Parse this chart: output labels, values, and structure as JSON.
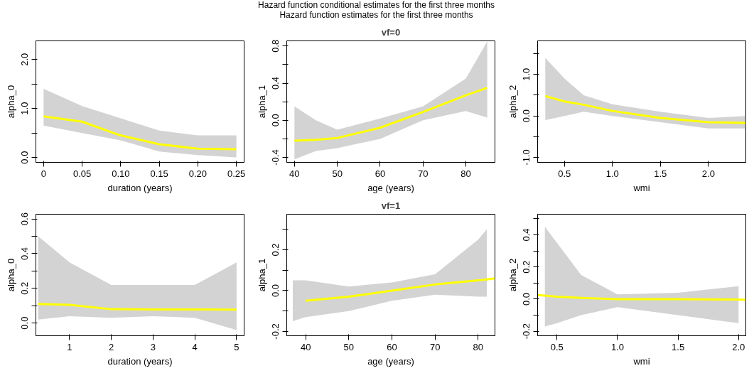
{
  "chart_data": [
    {
      "type": "line",
      "xlabel": "duration (years)",
      "ylabel": "alpha_0",
      "annotations": [
        "Hazard function conditional estimates for the first three months",
        "Hazard function estimates for the first three months"
      ],
      "xlim": [
        -0.01,
        0.26
      ],
      "ylim": [
        -0.1,
        2.38
      ],
      "xticks": [
        0,
        {
          "value": 0.05,
          "label": "0.05"
        },
        {
          "value": 0.1,
          "label": "0.10"
        },
        {
          "value": 0.15,
          "label": "0.15"
        },
        {
          "value": 0.2,
          "label": "0.20"
        },
        0.25
      ],
      "yticks": [
        {
          "value": 0,
          "label": "0.0"
        },
        {
          "value": 0.5,
          "label": null
        },
        {
          "value": 1,
          "label": "1.0"
        },
        {
          "value": 1.5,
          "label": null
        },
        {
          "value": 2,
          "label": "2.0"
        }
      ],
      "series": [
        {
          "color": "#ffff00",
          "x": [
            0,
            0.05,
            0.1,
            0.15,
            0.2,
            0.25
          ],
          "values": [
            0.84,
            0.73,
            0.45,
            0.27,
            0.18,
            0.17
          ],
          "lower": [
            0.65,
            0.5,
            0.35,
            0.12,
            0.05,
            0.0
          ],
          "upper": [
            1.4,
            1.05,
            0.8,
            0.55,
            0.45,
            0.45
          ]
        }
      ]
    },
    {
      "type": "line",
      "title": "vf=0",
      "xlabel": "age (years)",
      "ylabel": "alpha_1",
      "xlim": [
        38.2,
        86.8
      ],
      "ylim": [
        -0.453,
        0.856
      ],
      "xticks": [
        40,
        50,
        60,
        70,
        80
      ],
      "yticks": [
        -0.4,
        {
          "value": -0.2,
          "label": null
        },
        {
          "value": 0,
          "label": "0.0"
        },
        {
          "value": 0.2,
          "label": null
        },
        0.4,
        {
          "value": 0.6,
          "label": null
        },
        0.8
      ],
      "series": [
        {
          "color": "#ffff00",
          "x": [
            40,
            45,
            50,
            60,
            70,
            80,
            85
          ],
          "values": [
            -0.22,
            -0.21,
            -0.19,
            -0.08,
            0.09,
            0.27,
            0.35
          ],
          "lower": [
            -0.42,
            -0.33,
            -0.3,
            -0.2,
            0.0,
            0.1,
            0.03
          ],
          "upper": [
            0.15,
            0.0,
            -0.1,
            0.02,
            0.15,
            0.45,
            0.85
          ]
        }
      ]
    },
    {
      "type": "line",
      "xlabel": "wmi",
      "ylabel": "alpha_2",
      "xlim": [
        0.22,
        2.39
      ],
      "ylim": [
        -1.12,
        1.81
      ],
      "xticks": [
        0.5,
        {
          "value": 1,
          "label": "1.0"
        },
        1.5,
        {
          "value": 2,
          "label": "2.0"
        }
      ],
      "yticks": [
        {
          "value": -1,
          "label": "-1.0"
        },
        {
          "value": -0.5,
          "label": null
        },
        {
          "value": 0,
          "label": "0.0"
        },
        {
          "value": 0.5,
          "label": null
        },
        {
          "value": 1,
          "label": "1.0"
        },
        {
          "value": 1.5,
          "label": null
        }
      ],
      "series": [
        {
          "color": "#ffff00",
          "x": [
            0.3,
            0.5,
            0.7,
            1.0,
            1.5,
            2.0,
            2.39
          ],
          "values": [
            0.48,
            0.35,
            0.27,
            0.12,
            -0.05,
            -0.15,
            -0.17
          ],
          "lower": [
            -0.1,
            0.0,
            0.1,
            0.0,
            -0.15,
            -0.3,
            -0.3
          ],
          "upper": [
            1.4,
            0.9,
            0.5,
            0.28,
            0.1,
            -0.05,
            0.0
          ]
        }
      ]
    },
    {
      "type": "line",
      "xlabel": "duration (years)",
      "ylabel": "alpha_0",
      "xlim": [
        0.195,
        5.18
      ],
      "ylim": [
        -0.073,
        0.627
      ],
      "xticks": [
        1,
        2,
        3,
        4,
        5
      ],
      "yticks": [
        {
          "value": 0,
          "label": "0.0"
        },
        {
          "value": 0.1,
          "label": null
        },
        0.2,
        {
          "value": 0.3,
          "label": null
        },
        0.4,
        {
          "value": 0.5,
          "label": null
        },
        0.6
      ],
      "series": [
        {
          "color": "#ffff00",
          "x": [
            0.25,
            1,
            2,
            3,
            4,
            5
          ],
          "values": [
            0.11,
            0.105,
            0.08,
            0.078,
            0.078,
            0.077
          ],
          "lower": [
            0.02,
            0.04,
            0.03,
            0.04,
            0.03,
            -0.04
          ],
          "upper": [
            0.5,
            0.35,
            0.22,
            0.22,
            0.22,
            0.35
          ]
        }
      ]
    },
    {
      "type": "line",
      "title": "vf=1",
      "xlabel": "age (years)",
      "ylabel": "alpha_1",
      "xlim": [
        35.6,
        83.9
      ],
      "ylim": [
        -0.221,
        0.374
      ],
      "xticks": [
        40,
        50,
        60,
        70,
        80
      ],
      "yticks": [
        -0.2,
        {
          "value": -0.1,
          "label": null
        },
        {
          "value": 0,
          "label": "0.0"
        },
        {
          "value": 0.1,
          "label": null
        },
        0.2,
        {
          "value": 0.3,
          "label": null
        }
      ],
      "series": [
        {
          "color": "#ffff00",
          "x": [
            37,
            40,
            50,
            60,
            70,
            80,
            82,
            83.9
          ],
          "values": [
            null,
            -0.05,
            -0.03,
            0.0,
            0.03,
            0.05,
            0.055,
            0.06
          ],
          "lower": [
            -0.15,
            -0.13,
            -0.1,
            -0.05,
            -0.02,
            -0.03,
            -0.03,
            null
          ],
          "upper": [
            0.05,
            0.05,
            0.02,
            0.04,
            0.08,
            0.25,
            0.3,
            null
          ]
        }
      ]
    },
    {
      "type": "line",
      "xlabel": "wmi",
      "ylabel": "alpha_2",
      "xlim": [
        0.34,
        2.06
      ],
      "ylim": [
        -0.228,
        0.528
      ],
      "xticks": [
        0.5,
        {
          "value": 1,
          "label": "1.0"
        },
        1.5,
        {
          "value": 2,
          "label": "2.0"
        }
      ],
      "yticks": [
        -0.2,
        {
          "value": -0.1,
          "label": null
        },
        {
          "value": 0,
          "label": "0.0"
        },
        {
          "value": 0.1,
          "label": null
        },
        0.2,
        {
          "value": 0.3,
          "label": null
        },
        0.4,
        {
          "value": 0.5,
          "label": null
        }
      ],
      "series": [
        {
          "color": "#ffff00",
          "x": [
            0.34,
            0.4,
            0.5,
            0.7,
            1.0,
            1.5,
            2.0,
            2.06
          ],
          "values": [
            0.025,
            0.022,
            0.015,
            0.007,
            0.0,
            0.0,
            -0.003,
            -0.005
          ],
          "lower": [
            null,
            -0.17,
            -0.15,
            -0.1,
            -0.05,
            -0.1,
            -0.15,
            null
          ],
          "upper": [
            null,
            0.45,
            0.35,
            0.15,
            0.03,
            0.04,
            0.08,
            null
          ]
        }
      ]
    }
  ]
}
